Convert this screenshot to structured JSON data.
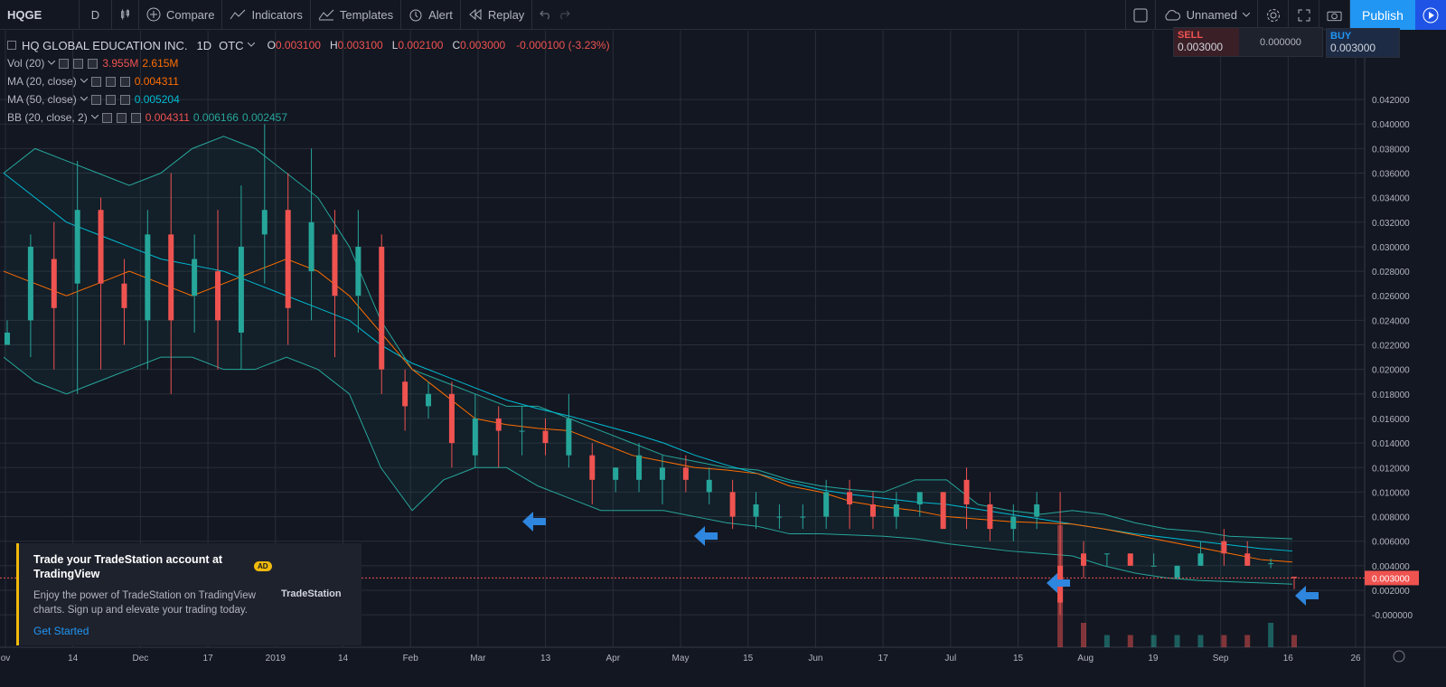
{
  "toolbar": {
    "symbol": "HQGE",
    "interval": "D",
    "compare": "Compare",
    "indicators": "Indicators",
    "templates": "Templates",
    "alert": "Alert",
    "replay": "Replay",
    "layout_name": "Unnamed",
    "publish": "Publish"
  },
  "legend": {
    "title": "HQ GLOBAL EDUCATION INC.",
    "interval": "1D",
    "exchange": "OTC",
    "o_label": "O",
    "o": "0.003100",
    "h_label": "H",
    "h": "0.003100",
    "l_label": "L",
    "l": "0.002100",
    "c_label": "C",
    "c": "0.003000",
    "change": "-0.000100 (-3.23%)",
    "vol_label": "Vol (20)",
    "vol_1": "3.955M",
    "vol_2": "2.615M",
    "ma20_label": "MA (20, close)",
    "ma20": "0.004311",
    "ma50_label": "MA (50, close)",
    "ma50": "0.005204",
    "bb_label": "BB (20, close, 2)",
    "bb_1": "0.004311",
    "bb_2": "0.006166",
    "bb_3": "0.002457"
  },
  "trade": {
    "sell_label": "SELL",
    "sell": "0.003000",
    "spread": "0.000000",
    "buy_label": "BUY",
    "buy": "0.003000"
  },
  "ad": {
    "title": "Trade your TradeStation account at TradingView",
    "body": "Enjoy the power of TradeStation on TradingView charts. Sign up and elevate your trading today.",
    "cta": "Get Started",
    "badge": "AD",
    "brand": "TradeStation"
  },
  "colors": {
    "up": "#26a69a",
    "down": "#ef5350",
    "ma20": "#ff6d00",
    "ma50": "#00bcd4",
    "bb": "#26a69a",
    "grid": "#2a2e39",
    "bg": "#131722",
    "arrow": "#2e86de"
  },
  "chart_data": {
    "type": "candlestick",
    "y_axis_ticks": [
      "0.042000",
      "0.040000",
      "0.038000",
      "0.036000",
      "0.034000",
      "0.032000",
      "0.030000",
      "0.028000",
      "0.026000",
      "0.024000",
      "0.022000",
      "0.020000",
      "0.018000",
      "0.016000",
      "0.014000",
      "0.012000",
      "0.010000",
      "0.008000",
      "0.006000",
      "0.004000",
      "0.002000",
      "-0.000000"
    ],
    "ylim": [
      -0.0008,
      0.0437
    ],
    "last_price": "0.003000",
    "last_price_value": 0.003,
    "x_axis_ticks": [
      "ov",
      "14",
      "Dec",
      "17",
      "2019",
      "14",
      "Feb",
      "Mar",
      "13",
      "Apr",
      "May",
      "15",
      "Jun",
      "17",
      "Jul",
      "15",
      "Aug",
      "19",
      "Sep",
      "16",
      "26"
    ],
    "ma20_label": "MA (20)",
    "ma50_label": "MA (50)",
    "bb_label": "BB (20, 2)",
    "ma20": [
      0.028,
      0.027,
      0.026,
      0.027,
      0.028,
      0.027,
      0.026,
      0.027,
      0.028,
      0.029,
      0.028,
      0.026,
      0.023,
      0.02,
      0.018,
      0.016,
      0.0155,
      0.0152,
      0.015,
      0.014,
      0.013,
      0.0125,
      0.012,
      0.0118,
      0.0115,
      0.0105,
      0.01,
      0.0092,
      0.0088,
      0.0085,
      0.008,
      0.0078,
      0.0076,
      0.0075,
      0.0074,
      0.007,
      0.0065,
      0.006,
      0.0055,
      0.005,
      0.0045,
      0.0043
    ],
    "ma50": [
      0.036,
      0.034,
      0.032,
      0.031,
      0.03,
      0.029,
      0.0285,
      0.028,
      0.027,
      0.026,
      0.025,
      0.024,
      0.022,
      0.0205,
      0.0195,
      0.0185,
      0.0175,
      0.0168,
      0.0162,
      0.0155,
      0.0148,
      0.014,
      0.013,
      0.0122,
      0.0115,
      0.0108,
      0.0102,
      0.0098,
      0.0095,
      0.0092,
      0.009,
      0.0086,
      0.0082,
      0.0078,
      0.0074,
      0.007,
      0.0066,
      0.0063,
      0.006,
      0.0057,
      0.0054,
      0.0052
    ],
    "bb_upper": [
      0.036,
      0.038,
      0.037,
      0.036,
      0.035,
      0.036,
      0.038,
      0.039,
      0.038,
      0.036,
      0.034,
      0.03,
      0.024,
      0.02,
      0.019,
      0.018,
      0.017,
      0.017,
      0.016,
      0.015,
      0.014,
      0.013,
      0.0125,
      0.012,
      0.0118,
      0.011,
      0.0105,
      0.0102,
      0.01,
      0.011,
      0.011,
      0.009,
      0.0085,
      0.0082,
      0.0085,
      0.0082,
      0.0075,
      0.007,
      0.0068,
      0.0064,
      0.0063,
      0.0062
    ],
    "bb_lower": [
      0.021,
      0.019,
      0.018,
      0.019,
      0.02,
      0.021,
      0.021,
      0.02,
      0.02,
      0.021,
      0.02,
      0.018,
      0.012,
      0.0085,
      0.011,
      0.012,
      0.012,
      0.0105,
      0.0095,
      0.0085,
      0.0085,
      0.0085,
      0.008,
      0.0075,
      0.0072,
      0.0066,
      0.0066,
      0.0065,
      0.0064,
      0.0062,
      0.0058,
      0.0055,
      0.0052,
      0.005,
      0.0048,
      0.004,
      0.0034,
      0.003,
      0.0028,
      0.0027,
      0.0026,
      0.0025
    ],
    "candles": [
      [
        0.022,
        0.023,
        0.022,
        0.024
      ],
      [
        0.024,
        0.03,
        0.021,
        0.031
      ],
      [
        0.029,
        0.025,
        0.02,
        0.032
      ],
      [
        0.027,
        0.033,
        0.018,
        0.037
      ],
      [
        0.033,
        0.027,
        0.02,
        0.034
      ],
      [
        0.027,
        0.025,
        0.022,
        0.029
      ],
      [
        0.024,
        0.031,
        0.02,
        0.033
      ],
      [
        0.031,
        0.024,
        0.018,
        0.036
      ],
      [
        0.026,
        0.029,
        0.023,
        0.031
      ],
      [
        0.028,
        0.024,
        0.02,
        0.033
      ],
      [
        0.023,
        0.03,
        0.02,
        0.035
      ],
      [
        0.031,
        0.033,
        0.027,
        0.04
      ],
      [
        0.033,
        0.025,
        0.022,
        0.036
      ],
      [
        0.028,
        0.032,
        0.024,
        0.038
      ],
      [
        0.031,
        0.026,
        0.021,
        0.033
      ],
      [
        0.026,
        0.03,
        0.023,
        0.033
      ],
      [
        0.03,
        0.02,
        0.018,
        0.031
      ],
      [
        0.019,
        0.017,
        0.015,
        0.02
      ],
      [
        0.017,
        0.018,
        0.016,
        0.019
      ],
      [
        0.018,
        0.014,
        0.012,
        0.019
      ],
      [
        0.013,
        0.016,
        0.012,
        0.018
      ],
      [
        0.016,
        0.015,
        0.012,
        0.017
      ],
      [
        0.015,
        0.015,
        0.013,
        0.017
      ],
      [
        0.015,
        0.014,
        0.013,
        0.016
      ],
      [
        0.013,
        0.016,
        0.012,
        0.018
      ],
      [
        0.013,
        0.011,
        0.009,
        0.014
      ],
      [
        0.011,
        0.012,
        0.01,
        0.012
      ],
      [
        0.011,
        0.013,
        0.01,
        0.014
      ],
      [
        0.011,
        0.012,
        0.009,
        0.013
      ],
      [
        0.012,
        0.011,
        0.01,
        0.013
      ],
      [
        0.01,
        0.011,
        0.009,
        0.012
      ],
      [
        0.01,
        0.008,
        0.007,
        0.011
      ],
      [
        0.008,
        0.009,
        0.007,
        0.01
      ],
      [
        0.008,
        0.008,
        0.007,
        0.009
      ],
      [
        0.008,
        0.008,
        0.007,
        0.009
      ],
      [
        0.008,
        0.01,
        0.007,
        0.011
      ],
      [
        0.01,
        0.009,
        0.007,
        0.011
      ],
      [
        0.009,
        0.008,
        0.007,
        0.01
      ],
      [
        0.008,
        0.009,
        0.007,
        0.01
      ],
      [
        0.009,
        0.01,
        0.008,
        0.01
      ],
      [
        0.01,
        0.007,
        0.007,
        0.01
      ],
      [
        0.011,
        0.009,
        0.007,
        0.012
      ],
      [
        0.009,
        0.007,
        0.006,
        0.01
      ],
      [
        0.007,
        0.008,
        0.006,
        0.009
      ],
      [
        0.008,
        0.009,
        0.007,
        0.01
      ],
      [
        0.004,
        0.001,
        0.0,
        0.01
      ],
      [
        0.005,
        0.004,
        0.003,
        0.006
      ],
      [
        0.005,
        0.005,
        0.004,
        0.005
      ],
      [
        0.005,
        0.004,
        0.004,
        0.005
      ],
      [
        0.004,
        0.004,
        0.004,
        0.005
      ],
      [
        0.003,
        0.004,
        0.003,
        0.004
      ],
      [
        0.004,
        0.005,
        0.004,
        0.006
      ],
      [
        0.006,
        0.005,
        0.004,
        0.007
      ],
      [
        0.005,
        0.004,
        0.004,
        0.006
      ],
      [
        0.0042,
        0.0042,
        0.0038,
        0.0046
      ],
      [
        0.0031,
        0.003,
        0.0021,
        0.0031
      ]
    ],
    "volume": [
      0,
      0,
      0,
      0,
      0,
      0,
      0,
      0,
      0,
      0,
      0,
      0,
      0,
      0,
      0,
      0,
      0,
      0,
      0,
      0,
      0,
      0,
      0,
      0,
      0,
      0,
      0,
      0,
      0,
      0,
      0,
      0,
      0,
      0,
      0,
      0,
      0,
      0,
      0,
      0,
      0,
      0,
      0,
      0,
      0,
      100,
      20,
      10,
      10,
      10,
      10,
      10,
      10,
      10,
      20,
      10
    ],
    "annotations": [
      "arrow-1",
      "arrow-2",
      "arrow-3",
      "arrow-4"
    ]
  }
}
